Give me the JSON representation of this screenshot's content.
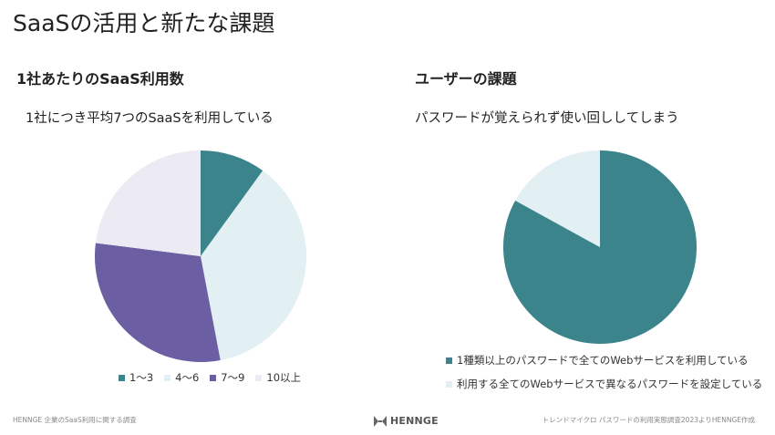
{
  "page": {
    "title": "SaaSの活用と新たな課題"
  },
  "left": {
    "heading": "1社あたりのSaaS利用数",
    "subtitle": "1社につき平均7つのSaaSを利用している"
  },
  "right": {
    "heading": "ユーザーの課題",
    "subtitle": "パスワードが覚えられず使い回ししてしまう"
  },
  "chart_data": [
    {
      "type": "pie",
      "labels": [
        "1～3",
        "4～6",
        "7～9",
        "10以上"
      ],
      "values": [
        10,
        37,
        30,
        23
      ],
      "colors": [
        "#3c848c",
        "#e2eff3",
        "#6b5ea3",
        "#ecebf4"
      ],
      "legend_position": "bottom"
    },
    {
      "type": "pie",
      "labels": [
        "1種類以上のパスワードで全てのWebサービスを利用している",
        "利用する全てのWebサービスで異なるパスワードを設定している"
      ],
      "values": [
        83,
        17
      ],
      "colors": [
        "#3c848c",
        "#e2eff3"
      ],
      "legend_position": "bottom"
    }
  ],
  "footer": {
    "left": "HENNGE 企業のSaaS利用に関する調査",
    "center": "HENNGE",
    "right": "トレンドマイクロ パスワードの利用実態調査2023よりHENNGE作成"
  }
}
